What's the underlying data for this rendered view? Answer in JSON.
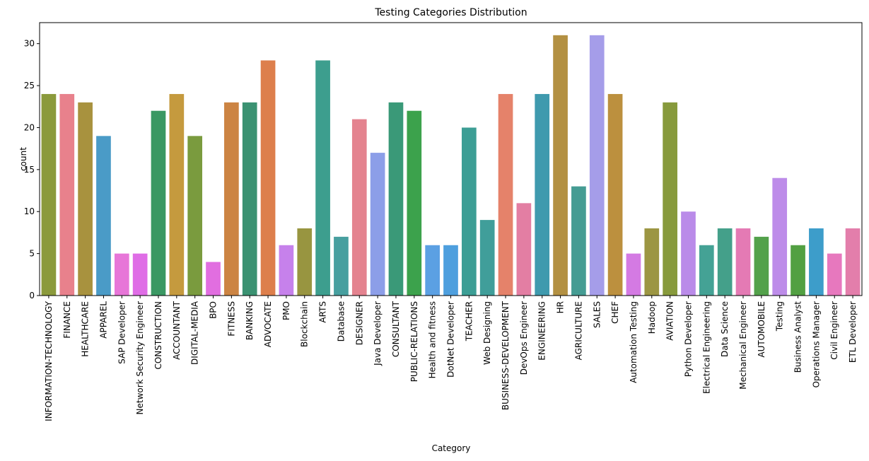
{
  "chart_data": {
    "type": "bar",
    "title": "Testing Categories Distribution",
    "xlabel": "Category",
    "ylabel": "count",
    "ylim": [
      0,
      32.5
    ],
    "yticks": [
      0,
      5,
      10,
      15,
      20,
      25,
      30
    ],
    "grid": false,
    "legend": "none",
    "categories": [
      "INFORMATION-TECHNOLOGY",
      "FINANCE",
      "HEALTHCARE",
      "APPAREL",
      "SAP Developer",
      "Network Security Engineer",
      "CONSTRUCTION",
      "ACCOUNTANT",
      "DIGITAL-MEDIA",
      "BPO",
      "FITNESS",
      "BANKING",
      "ADVOCATE",
      "PMO",
      "Blockchain",
      "ARTS",
      "Database",
      "DESIGNER",
      "Java Developer",
      "CONSULTANT",
      "PUBLIC-RELATIONS",
      "Health and fitness",
      "DotNet Developer",
      "TEACHER",
      "Web Designing",
      "BUSINESS-DEVELOPMENT",
      "DevOps Engineer",
      "ENGINEERING",
      "HR",
      "AGRICULTURE",
      "SALES",
      "CHEF",
      "Automation Testing",
      "Hadoop",
      "AVIATION",
      "Python Developer",
      "Electrical Engineering",
      "Data Science",
      "Mechanical Engineer",
      "AUTOMOBILE",
      "Testing",
      "Business Analyst",
      "Operations Manager",
      "Civil Engineer",
      "ETL Developer"
    ],
    "values": [
      24,
      24,
      23,
      19,
      5,
      5,
      22,
      24,
      19,
      4,
      23,
      23,
      28,
      6,
      8,
      28,
      7,
      21,
      17,
      23,
      22,
      6,
      6,
      20,
      9,
      24,
      11,
      24,
      31,
      13,
      31,
      24,
      5,
      8,
      23,
      10,
      6,
      8,
      8,
      7,
      14,
      6,
      8,
      5,
      8
    ],
    "colors": [
      "#8b9a3c",
      "#e8818c",
      "#a8923e",
      "#4a9bc7",
      "#e776d8",
      "#df6de6",
      "#3a9863",
      "#c59a3e",
      "#7a9b3e",
      "#e16ee0",
      "#cc8443",
      "#3b9272",
      "#dd7f4c",
      "#c681eb",
      "#989540",
      "#3d9e8e",
      "#479f9f",
      "#e4838f",
      "#8c9ee8",
      "#3a9978",
      "#3ca24c",
      "#5ba0e3",
      "#4e9fde",
      "#3c9e95",
      "#409e9a",
      "#e5826a",
      "#e37ea3",
      "#3f9aae",
      "#b39042",
      "#459c93",
      "#a59de9",
      "#bc903e",
      "#d47ae3",
      "#9c9643",
      "#879a3c",
      "#ba8be9",
      "#44a295",
      "#44a08a",
      "#e47ab4",
      "#53a14b",
      "#bd8ce9",
      "#52a042",
      "#3d9dca",
      "#e778be",
      "#e37eab"
    ]
  }
}
